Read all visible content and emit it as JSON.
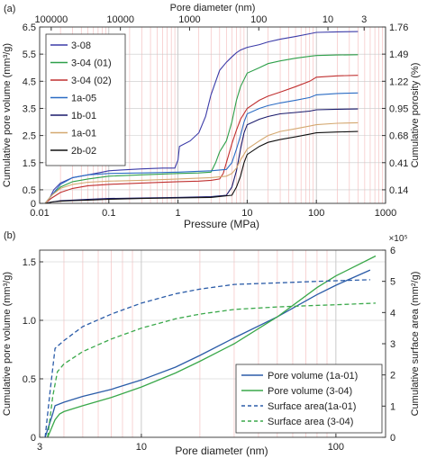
{
  "chart_data": [
    {
      "panel_label": "(a)",
      "type": "line",
      "x_scale": "log",
      "top_axis_scale": "log",
      "xlabel": "Pressure (MPa)",
      "ylabel": "Cumulative pore volume (mm³/g)",
      "ylabel_right": "Cumulative porosity (%)",
      "xlabel_top": "Pore diameter (nm)",
      "xlim": [
        0.01,
        1000
      ],
      "ylim": [
        0,
        6.5
      ],
      "x_ticks": [
        "0.01",
        "0.1",
        "1",
        "10",
        "100",
        "1000"
      ],
      "y_ticks": [
        "0",
        "0.5",
        "1.5",
        "2.5",
        "3.5",
        "4.5",
        "5.5",
        "6.5"
      ],
      "y_tick_values": [
        0,
        0.5,
        1.5,
        2.5,
        3.5,
        4.5,
        5.5,
        6.5
      ],
      "right_ticks": [
        "0.14",
        "0.41",
        "0.68",
        "0.95",
        "1.22",
        "1.49",
        "1.76"
      ],
      "top_ticks": [
        "100000",
        "10000",
        "1000",
        "100",
        "10",
        "3"
      ],
      "top_tick_values": [
        100000,
        10000,
        1000,
        100,
        10,
        3
      ],
      "grid": true,
      "legend_position": "top-left",
      "series": [
        {
          "name": "3-08",
          "color": "#3b3ba8",
          "x": [
            0.012,
            0.014,
            0.016,
            0.02,
            0.03,
            0.05,
            0.08,
            0.1,
            0.15,
            0.3,
            0.6,
            0.9,
            1.0,
            1.05,
            1.5,
            2.0,
            2.5,
            3.0,
            4.0,
            5.0,
            6.0,
            7.0,
            8.0,
            10,
            15,
            20,
            30,
            50,
            80,
            100,
            200,
            400
          ],
          "y": [
            0.0,
            0.2,
            0.5,
            0.75,
            0.95,
            1.05,
            1.15,
            1.2,
            1.23,
            1.27,
            1.3,
            1.3,
            1.6,
            2.1,
            2.3,
            2.6,
            3.2,
            4.0,
            4.9,
            5.2,
            5.4,
            5.55,
            5.65,
            5.75,
            5.85,
            5.95,
            6.05,
            6.15,
            6.25,
            6.3,
            6.32,
            6.33
          ]
        },
        {
          "name": "3-04 (01)",
          "color": "#2ea04a",
          "x": [
            0.012,
            0.015,
            0.02,
            0.03,
            0.05,
            0.1,
            0.3,
            1.0,
            2.0,
            3.0,
            3.5,
            4.0,
            5.0,
            6.0,
            7.0,
            8.0,
            10,
            15,
            20,
            30,
            50,
            80,
            100,
            200,
            400
          ],
          "y": [
            0.0,
            0.3,
            0.6,
            0.8,
            0.9,
            1.0,
            1.05,
            1.1,
            1.12,
            1.15,
            1.5,
            1.9,
            2.3,
            3.0,
            3.8,
            4.3,
            4.8,
            5.0,
            5.15,
            5.25,
            5.35,
            5.42,
            5.45,
            5.47,
            5.48
          ]
        },
        {
          "name": "3-04 (02)",
          "color": "#c03030",
          "x": [
            0.012,
            0.015,
            0.02,
            0.03,
            0.05,
            0.1,
            0.3,
            1.0,
            2.0,
            3.0,
            4.0,
            4.5,
            5.0,
            6.0,
            7.0,
            8.0,
            10,
            15,
            20,
            30,
            50,
            80,
            100,
            200,
            400
          ],
          "y": [
            0.0,
            0.2,
            0.4,
            0.55,
            0.65,
            0.7,
            0.75,
            0.8,
            0.82,
            0.85,
            0.9,
            1.1,
            1.5,
            2.2,
            2.7,
            3.1,
            3.5,
            3.8,
            3.95,
            4.1,
            4.3,
            4.5,
            4.65,
            4.7,
            4.72
          ]
        },
        {
          "name": "1a-05",
          "color": "#2b6cc4",
          "x": [
            0.012,
            0.015,
            0.02,
            0.03,
            0.05,
            0.1,
            0.3,
            1.0,
            3.0,
            5.0,
            6.0,
            7.0,
            8.0,
            9.0,
            10,
            15,
            20,
            30,
            50,
            80,
            100,
            200,
            400
          ],
          "y": [
            0.0,
            0.3,
            0.7,
            0.95,
            1.05,
            1.1,
            1.12,
            1.15,
            1.2,
            1.25,
            1.5,
            2.0,
            2.5,
            3.0,
            3.3,
            3.5,
            3.6,
            3.7,
            3.8,
            3.9,
            4.0,
            4.05,
            4.07
          ]
        },
        {
          "name": "1b-01",
          "color": "#1a1a6b",
          "x": [
            0.012,
            0.015,
            0.02,
            0.03,
            0.05,
            0.1,
            0.3,
            1.0,
            3.0,
            5.0,
            6.0,
            7.0,
            8.0,
            9.0,
            10,
            15,
            20,
            30,
            50,
            80,
            100,
            200,
            400
          ],
          "y": [
            0.0,
            0.05,
            0.1,
            0.12,
            0.15,
            0.18,
            0.2,
            0.22,
            0.25,
            0.3,
            0.6,
            1.2,
            2.0,
            2.6,
            2.9,
            3.1,
            3.2,
            3.3,
            3.35,
            3.4,
            3.45,
            3.47,
            3.48
          ]
        },
        {
          "name": "1a-01",
          "color": "#d4a870",
          "x": [
            0.012,
            0.015,
            0.02,
            0.03,
            0.05,
            0.1,
            0.3,
            1.0,
            3.0,
            5.0,
            6.0,
            7.0,
            8.0,
            10,
            15,
            20,
            30,
            50,
            80,
            100,
            200,
            400
          ],
          "y": [
            0.0,
            0.3,
            0.55,
            0.7,
            0.78,
            0.82,
            0.85,
            0.9,
            0.95,
            1.0,
            1.1,
            1.3,
            1.6,
            2.0,
            2.3,
            2.5,
            2.65,
            2.75,
            2.85,
            2.9,
            2.95,
            2.97
          ]
        },
        {
          "name": "2b-02",
          "color": "#111111",
          "x": [
            0.012,
            0.015,
            0.02,
            0.03,
            0.05,
            0.1,
            0.3,
            1.0,
            3.0,
            6.0,
            7.0,
            8.0,
            9.0,
            10,
            15,
            20,
            30,
            50,
            80,
            100,
            200,
            400
          ],
          "y": [
            0.0,
            0.05,
            0.08,
            0.1,
            0.12,
            0.15,
            0.18,
            0.2,
            0.22,
            0.3,
            0.6,
            1.0,
            1.5,
            1.8,
            2.1,
            2.25,
            2.35,
            2.45,
            2.55,
            2.6,
            2.63,
            2.65
          ]
        }
      ]
    },
    {
      "panel_label": "(b)",
      "type": "line",
      "x_scale": "log",
      "xlabel": "Pore diameter (nm)",
      "ylabel": "Cumulative pore volume (mm³/g)",
      "ylabel_right": "Cumulative surface area (mm²/g)",
      "xlim": [
        3,
        180
      ],
      "ylim": [
        0,
        1.6
      ],
      "ylim_right": [
        0,
        600000
      ],
      "x_ticks": [
        "3",
        "10",
        "100"
      ],
      "x_tick_values": [
        3,
        10,
        100
      ],
      "y_ticks": [
        "0",
        "0.5",
        "1.0",
        "1.5"
      ],
      "y_tick_values": [
        0,
        0.5,
        1.0,
        1.5
      ],
      "right_ticks": [
        "0",
        "1",
        "2",
        "3",
        "4",
        "5",
        "6"
      ],
      "right_multiplier": "×10⁵",
      "grid": true,
      "legend_position": "bottom-right",
      "series": [
        {
          "name": "Pore volume (1a-01)",
          "color": "#2b5ca8",
          "dash": "solid",
          "axis": "left",
          "x": [
            3.2,
            3.5,
            3.6,
            4,
            5,
            7,
            10,
            15,
            20,
            30,
            50,
            80,
            100,
            150
          ],
          "y": [
            0.0,
            0.2,
            0.27,
            0.3,
            0.35,
            0.41,
            0.49,
            0.6,
            0.7,
            0.85,
            1.03,
            1.22,
            1.3,
            1.43
          ]
        },
        {
          "name": "Pore volume (3-04)",
          "color": "#3aa84a",
          "dash": "solid",
          "axis": "left",
          "x": [
            3.3,
            3.6,
            3.8,
            4,
            5,
            7,
            10,
            15,
            20,
            30,
            50,
            80,
            100,
            160
          ],
          "y": [
            0.0,
            0.15,
            0.2,
            0.22,
            0.27,
            0.34,
            0.43,
            0.55,
            0.65,
            0.8,
            1.03,
            1.28,
            1.38,
            1.55
          ]
        },
        {
          "name": "Surface area(1a-01)",
          "color": "#2b5ca8",
          "dash": "dashed",
          "axis": "right",
          "x": [
            3.2,
            3.4,
            3.6,
            4,
            5,
            7,
            10,
            15,
            20,
            30,
            50,
            80,
            100,
            150
          ],
          "y": [
            0,
            150000,
            285000,
            310000,
            355000,
            395000,
            430000,
            460000,
            475000,
            490000,
            495000,
            500000,
            502000,
            505000
          ]
        },
        {
          "name": "Surface area (3-04)",
          "color": "#3aa84a",
          "dash": "dashed",
          "axis": "right",
          "x": [
            3.3,
            3.5,
            3.7,
            4,
            5,
            7,
            10,
            15,
            20,
            30,
            50,
            80,
            100,
            160
          ],
          "y": [
            0,
            130000,
            210000,
            235000,
            275000,
            315000,
            350000,
            380000,
            395000,
            410000,
            418000,
            423000,
            425000,
            430000
          ]
        }
      ]
    }
  ]
}
